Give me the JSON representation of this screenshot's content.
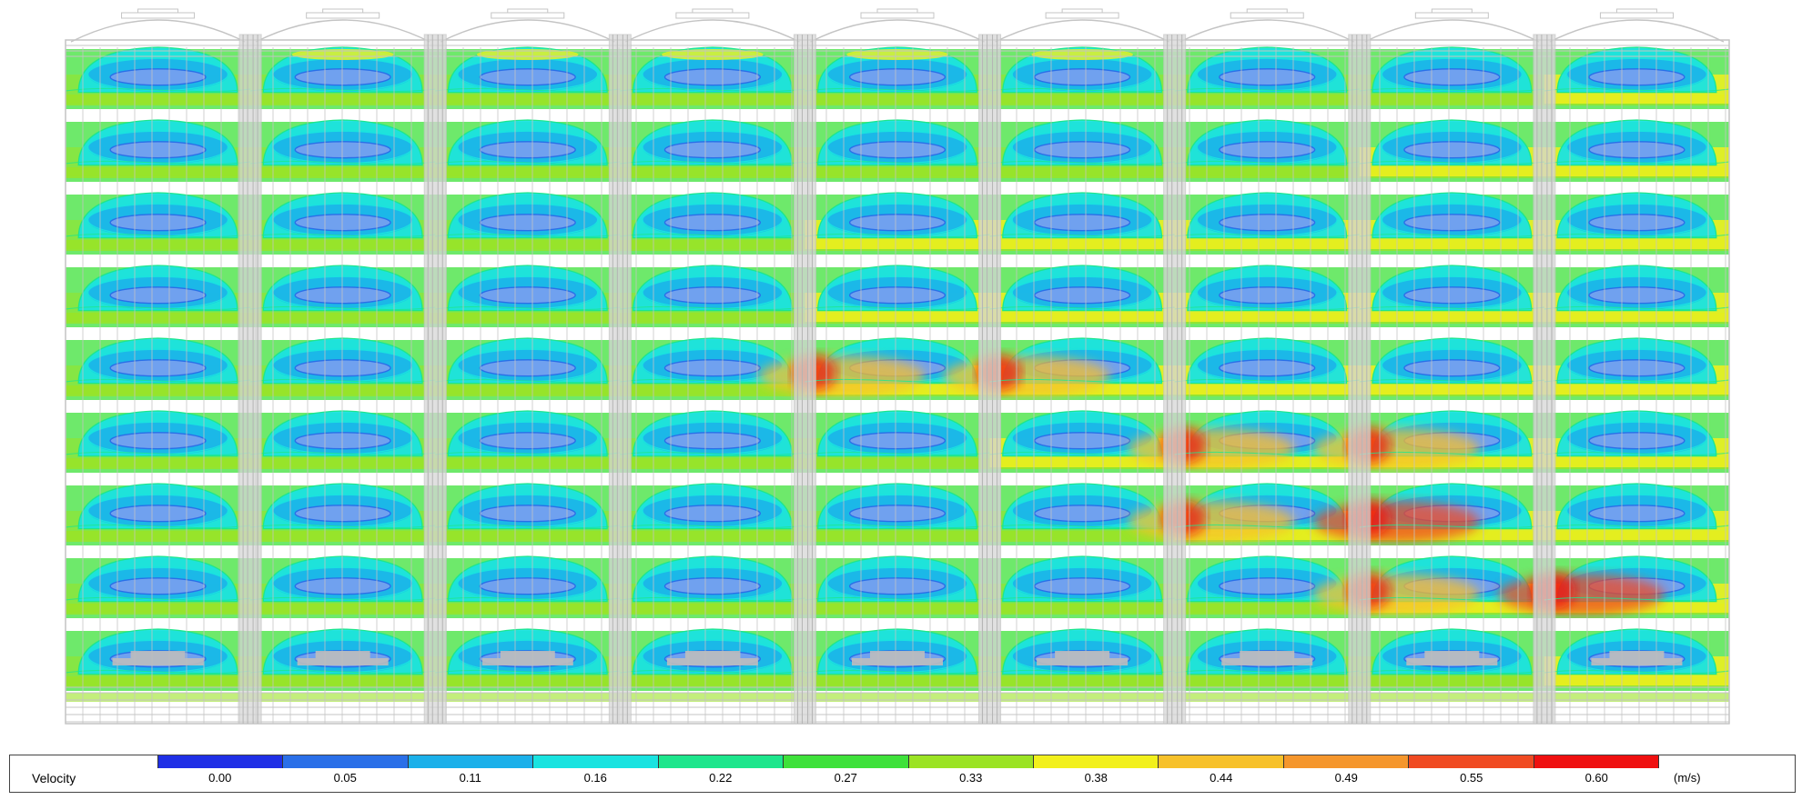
{
  "legend": {
    "title": "Velocity",
    "units": "(m/s)",
    "ticks": [
      "0.00",
      "0.05",
      "0.11",
      "0.16",
      "0.22",
      "0.27",
      "0.33",
      "0.38",
      "0.44",
      "0.49",
      "0.55",
      "0.60"
    ],
    "colors": [
      "#1f2fe6",
      "#2a6fe8",
      "#1bb0ea",
      "#19e3e0",
      "#1de68c",
      "#3ee13a",
      "#9be324",
      "#f2f01c",
      "#f7c12a",
      "#f5962c",
      "#f04a22",
      "#ef1010"
    ]
  },
  "field": {
    "colors": {
      "structure": "#c4c4c4",
      "floor": "#bdbdbd"
    }
  }
}
